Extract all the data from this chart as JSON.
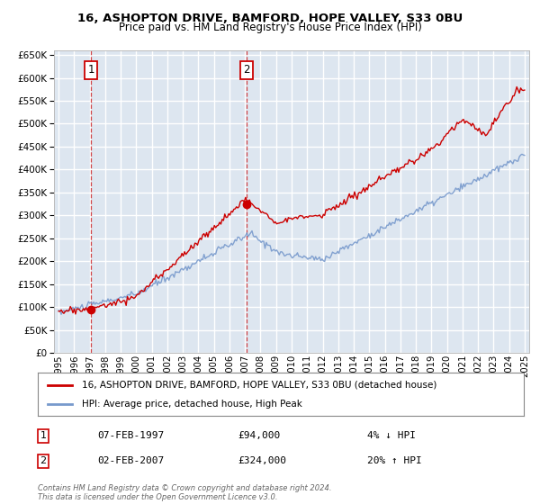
{
  "title": "16, ASHOPTON DRIVE, BAMFORD, HOPE VALLEY, S33 0BU",
  "subtitle": "Price paid vs. HM Land Registry's House Price Index (HPI)",
  "bg_color": "#dde6f0",
  "grid_color": "#ffffff",
  "red_color": "#cc0000",
  "blue_color": "#7799cc",
  "ylim": [
    0,
    660000
  ],
  "yticks": [
    0,
    50000,
    100000,
    150000,
    200000,
    250000,
    300000,
    350000,
    400000,
    450000,
    500000,
    550000,
    600000,
    650000
  ],
  "xlim_start": 1994.7,
  "xlim_end": 2025.3,
  "purchase1_year": 1997.1,
  "purchase1_price": 94000,
  "purchase2_year": 2007.1,
  "purchase2_price": 324000,
  "legend_line1": "16, ASHOPTON DRIVE, BAMFORD, HOPE VALLEY, S33 0BU (detached house)",
  "legend_line2": "HPI: Average price, detached house, High Peak",
  "annotation1_label": "1",
  "annotation1_date": "07-FEB-1997",
  "annotation1_price": "£94,000",
  "annotation1_change": "4% ↓ HPI",
  "annotation2_label": "2",
  "annotation2_date": "02-FEB-2007",
  "annotation2_price": "£324,000",
  "annotation2_change": "20% ↑ HPI",
  "footer": "Contains HM Land Registry data © Crown copyright and database right 2024.\nThis data is licensed under the Open Government Licence v3.0."
}
